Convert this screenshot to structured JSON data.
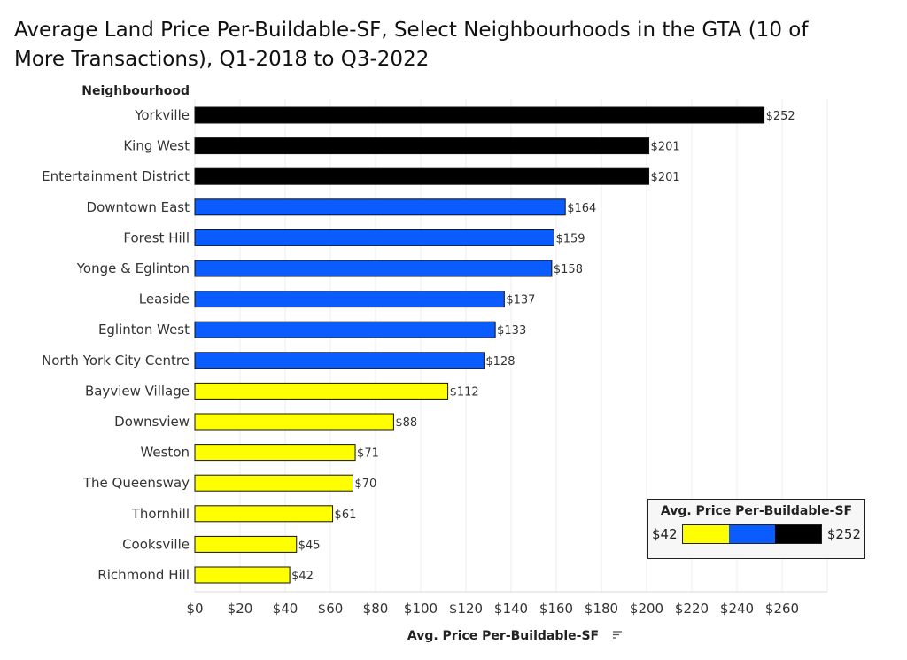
{
  "title": "Average Land Price Per-Buildable-SF, Select Neighbourhoods in the GTA (10 of More Transactions), Q1-2018 to Q3-2022",
  "colors": {
    "black": "#000000",
    "blue": "#0a5cff",
    "yellow": "#ffff00",
    "grid": "#ececec",
    "stroke": "#111111"
  },
  "chart_data": {
    "type": "bar",
    "orientation": "horizontal",
    "category_header": "Neighbourhood",
    "xlabel": "Avg. Price Per-Buildable-SF",
    "xlim": [
      0,
      280
    ],
    "xticks": [
      0,
      20,
      40,
      60,
      80,
      100,
      120,
      140,
      160,
      180,
      200,
      220,
      240,
      260
    ],
    "xtick_labels": [
      "$0",
      "$20",
      "$40",
      "$60",
      "$80",
      "$100",
      "$120",
      "$140",
      "$160",
      "$180",
      "$200",
      "$220",
      "$240",
      "$260"
    ],
    "grid": true,
    "categories": [
      "Yorkville",
      "King West",
      "Entertainment District",
      "Downtown East",
      "Forest Hill",
      "Yonge & Eglinton",
      "Leaside",
      "Eglinton West",
      "North York City Centre",
      "Bayview Village",
      "Downsview",
      "Weston",
      "The Queensway",
      "Thornhill",
      "Cooksville",
      "Richmond Hill"
    ],
    "values": [
      252,
      201,
      201,
      164,
      159,
      158,
      137,
      133,
      128,
      112,
      88,
      71,
      70,
      61,
      45,
      42
    ],
    "data_labels": [
      "$252",
      "$201",
      "$201",
      "$164",
      "$159",
      "$158",
      "$137",
      "$133",
      "$128",
      "$112",
      "$88",
      "$71",
      "$70",
      "$61",
      "$45",
      "$42"
    ],
    "bar_colors": [
      "black",
      "black",
      "black",
      "blue",
      "blue",
      "blue",
      "blue",
      "blue",
      "blue",
      "yellow",
      "yellow",
      "yellow",
      "yellow",
      "yellow",
      "yellow",
      "yellow"
    ],
    "legend": {
      "title": "Avg. Price Per-Buildable-SF",
      "min_label": "$42",
      "max_label": "$252",
      "ramp": [
        "yellow",
        "blue",
        "black"
      ],
      "placement": "bottom-right"
    }
  }
}
